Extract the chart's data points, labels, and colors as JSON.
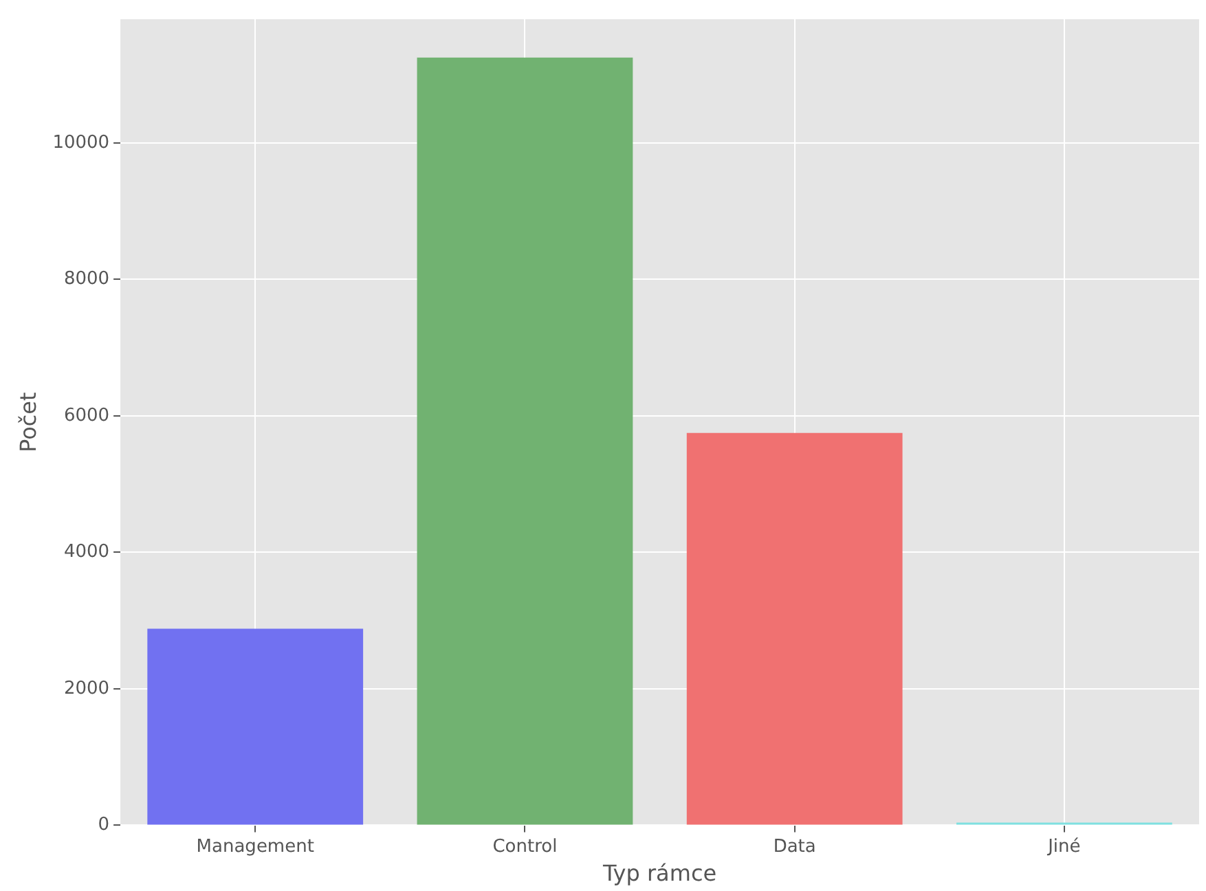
{
  "chart_data": {
    "type": "bar",
    "xlabel": "Typ rámce",
    "ylabel": "Počet",
    "categories": [
      "Management",
      "Control",
      "Data",
      "Jiné"
    ],
    "values": [
      2880,
      11250,
      5750,
      40
    ],
    "colors": [
      "#7171f1",
      "#71b271",
      "#f07171",
      "#7fe0e0"
    ],
    "ylim": [
      0,
      11812
    ],
    "yticks": [
      0,
      2000,
      4000,
      6000,
      8000,
      10000
    ],
    "grid": true,
    "legend": false
  }
}
